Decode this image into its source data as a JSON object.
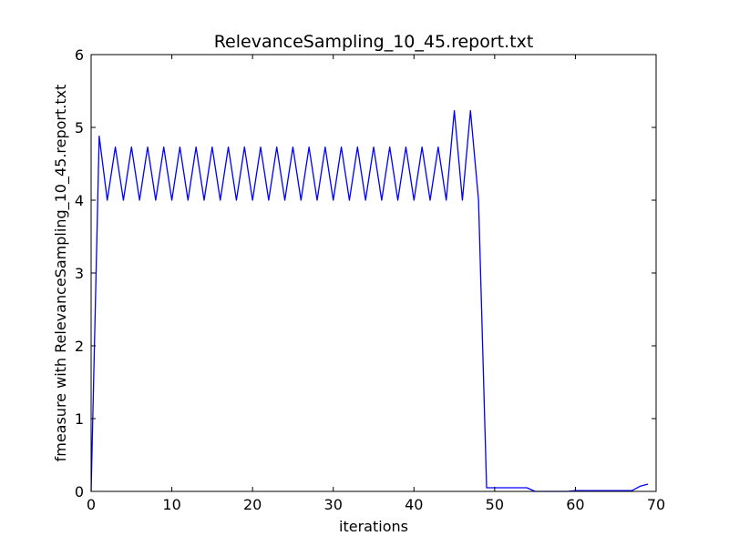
{
  "chart_data": {
    "type": "line",
    "title": "RelevanceSampling_10_45.report.txt",
    "xlabel": "iterations",
    "ylabel": "fmeasure with RelevanceSampling_10_45.report.txt",
    "xlim": [
      0,
      70
    ],
    "ylim": [
      0,
      6
    ],
    "xticks": [
      0,
      10,
      20,
      30,
      40,
      50,
      60,
      70
    ],
    "yticks": [
      0,
      1,
      2,
      3,
      4,
      5,
      6
    ],
    "grid": false,
    "series": [
      {
        "color": "#0000ff",
        "x": [
          0,
          1,
          2,
          3,
          4,
          5,
          6,
          7,
          8,
          9,
          10,
          11,
          12,
          13,
          14,
          15,
          16,
          17,
          18,
          19,
          20,
          21,
          22,
          23,
          24,
          25,
          26,
          27,
          28,
          29,
          30,
          31,
          32,
          33,
          34,
          35,
          36,
          37,
          38,
          39,
          40,
          41,
          42,
          43,
          44,
          45,
          46,
          47,
          48,
          49,
          50,
          51,
          52,
          53,
          54,
          55,
          56,
          57,
          58,
          59,
          60,
          61,
          62,
          63,
          64,
          65,
          66,
          67,
          68,
          69
        ],
        "y": [
          0,
          4.88,
          4.0,
          4.73,
          4.0,
          4.73,
          4.0,
          4.73,
          4.0,
          4.73,
          4.0,
          4.73,
          4.0,
          4.73,
          4.0,
          4.73,
          4.0,
          4.73,
          4.0,
          4.73,
          4.0,
          4.73,
          4.0,
          4.73,
          4.0,
          4.73,
          4.0,
          4.73,
          4.0,
          4.73,
          4.0,
          4.73,
          4.0,
          4.73,
          4.0,
          4.73,
          4.0,
          4.73,
          4.0,
          4.73,
          4.0,
          4.73,
          4.0,
          4.73,
          4.0,
          5.23,
          4.0,
          5.23,
          4.0,
          0.05,
          0.05,
          0.05,
          0.05,
          0.05,
          0.05,
          0.0,
          0.0,
          0.0,
          0.0,
          0.0,
          0.01,
          0.01,
          0.01,
          0.01,
          0.01,
          0.01,
          0.01,
          0.01,
          0.07,
          0.1
        ]
      }
    ]
  }
}
